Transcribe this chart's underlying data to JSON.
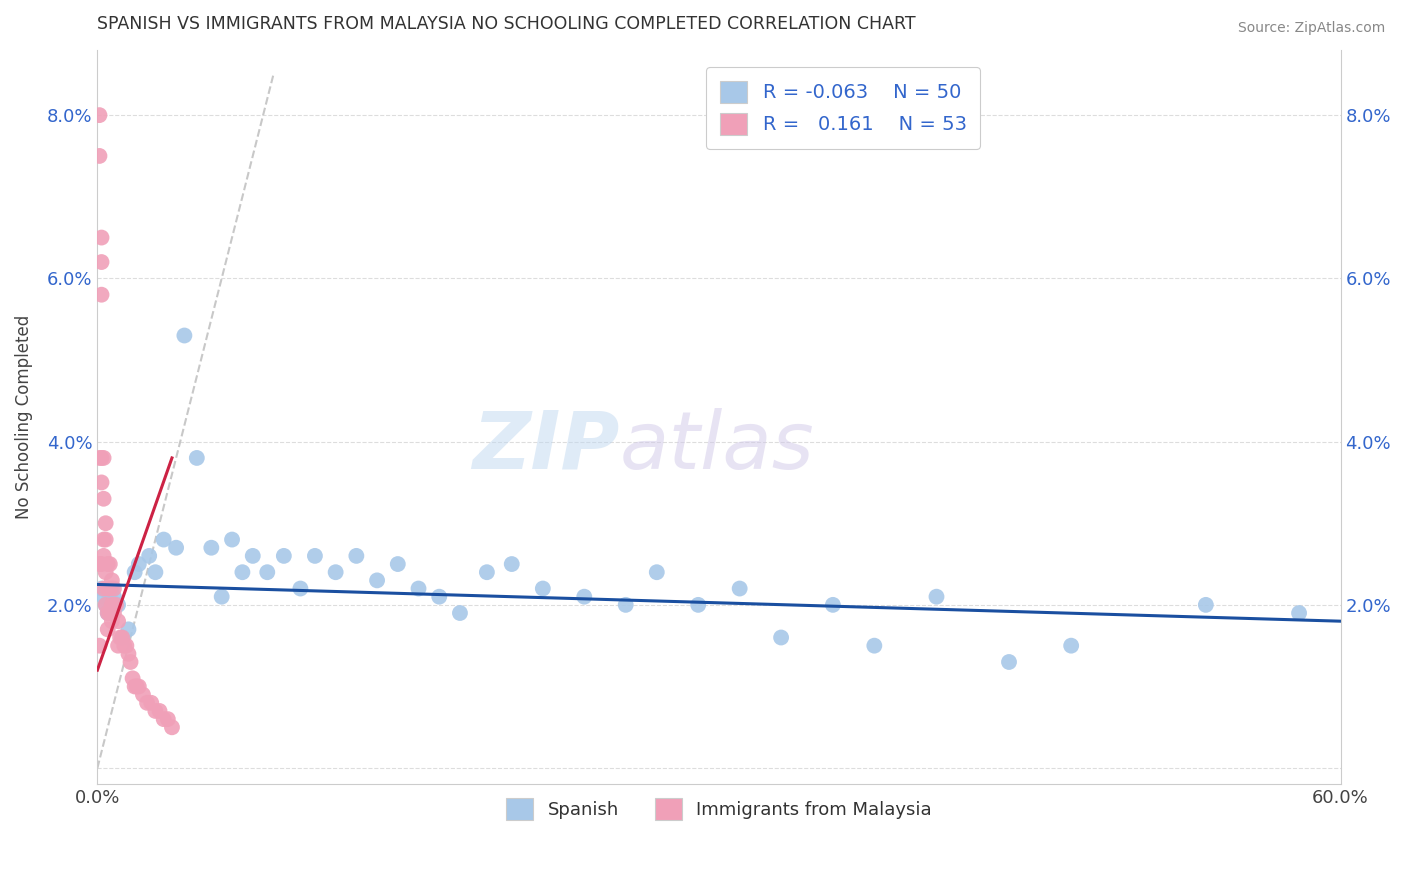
{
  "title": "SPANISH VS IMMIGRANTS FROM MALAYSIA NO SCHOOLING COMPLETED CORRELATION CHART",
  "source": "Source: ZipAtlas.com",
  "ylabel": "No Schooling Completed",
  "xlim": [
    0.0,
    0.6
  ],
  "ylim": [
    -0.002,
    0.088
  ],
  "yticks": [
    0.0,
    0.02,
    0.04,
    0.06,
    0.08
  ],
  "ytick_labels": [
    "",
    "2.0%",
    "4.0%",
    "6.0%",
    "8.0%"
  ],
  "xticks": [
    0.0,
    0.1,
    0.2,
    0.3,
    0.4,
    0.5,
    0.6
  ],
  "xtick_labels": [
    "0.0%",
    "",
    "",
    "",
    "",
    "",
    "60.0%"
  ],
  "blue_R": -0.063,
  "blue_N": 50,
  "pink_R": 0.161,
  "pink_N": 53,
  "blue_color": "#a8c8e8",
  "pink_color": "#f0a0b8",
  "blue_line_color": "#1a4fa0",
  "pink_line_color": "#cc2244",
  "diagonal_color": "#c8c8c8",
  "background_color": "#ffffff",
  "grid_color": "#dddddd",
  "watermark_left": "ZIP",
  "watermark_right": "atlas",
  "legend_label_blue": "Spanish",
  "legend_label_pink": "Immigrants from Malaysia",
  "blue_scatter_x": [
    0.002,
    0.003,
    0.004,
    0.005,
    0.006,
    0.007,
    0.008,
    0.01,
    0.012,
    0.015,
    0.018,
    0.02,
    0.025,
    0.028,
    0.032,
    0.038,
    0.042,
    0.048,
    0.055,
    0.06,
    0.065,
    0.07,
    0.075,
    0.082,
    0.09,
    0.098,
    0.105,
    0.115,
    0.125,
    0.135,
    0.145,
    0.155,
    0.165,
    0.175,
    0.188,
    0.2,
    0.215,
    0.235,
    0.255,
    0.27,
    0.29,
    0.31,
    0.33,
    0.355,
    0.375,
    0.405,
    0.44,
    0.47,
    0.535,
    0.58
  ],
  "blue_scatter_y": [
    0.022,
    0.021,
    0.02,
    0.019,
    0.021,
    0.022,
    0.021,
    0.02,
    0.016,
    0.017,
    0.024,
    0.025,
    0.026,
    0.024,
    0.028,
    0.027,
    0.053,
    0.038,
    0.027,
    0.021,
    0.028,
    0.024,
    0.026,
    0.024,
    0.026,
    0.022,
    0.026,
    0.024,
    0.026,
    0.023,
    0.025,
    0.022,
    0.021,
    0.019,
    0.024,
    0.025,
    0.022,
    0.021,
    0.02,
    0.024,
    0.02,
    0.022,
    0.016,
    0.02,
    0.015,
    0.021,
    0.013,
    0.015,
    0.02,
    0.019
  ],
  "pink_scatter_x": [
    0.001,
    0.001,
    0.001,
    0.002,
    0.002,
    0.002,
    0.002,
    0.002,
    0.003,
    0.003,
    0.003,
    0.003,
    0.003,
    0.004,
    0.004,
    0.004,
    0.004,
    0.005,
    0.005,
    0.005,
    0.005,
    0.006,
    0.006,
    0.006,
    0.007,
    0.007,
    0.007,
    0.008,
    0.008,
    0.009,
    0.01,
    0.01,
    0.011,
    0.012,
    0.013,
    0.014,
    0.015,
    0.016,
    0.017,
    0.018,
    0.019,
    0.02,
    0.022,
    0.024,
    0.026,
    0.028,
    0.03,
    0.032,
    0.034,
    0.036,
    0.002,
    0.001,
    0.001
  ],
  "pink_scatter_y": [
    0.08,
    0.075,
    0.015,
    0.062,
    0.058,
    0.038,
    0.035,
    0.025,
    0.038,
    0.033,
    0.028,
    0.026,
    0.022,
    0.03,
    0.028,
    0.024,
    0.02,
    0.025,
    0.022,
    0.019,
    0.017,
    0.025,
    0.022,
    0.019,
    0.023,
    0.02,
    0.018,
    0.022,
    0.019,
    0.02,
    0.018,
    0.015,
    0.016,
    0.016,
    0.015,
    0.015,
    0.014,
    0.013,
    0.011,
    0.01,
    0.01,
    0.01,
    0.009,
    0.008,
    0.008,
    0.007,
    0.007,
    0.006,
    0.006,
    0.005,
    0.065,
    0.038,
    0.025
  ],
  "pink_line_x": [
    0.0,
    0.036
  ],
  "pink_line_y_start": 0.012,
  "pink_line_y_end": 0.038,
  "blue_line_x": [
    0.0,
    0.6
  ],
  "blue_line_y_start": 0.0225,
  "blue_line_y_end": 0.018
}
